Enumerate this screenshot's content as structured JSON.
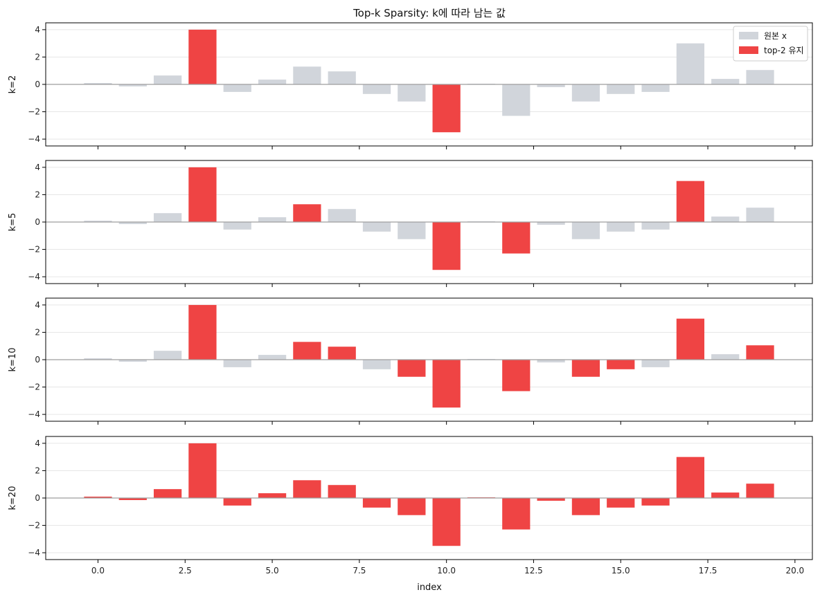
{
  "chart_data": {
    "type": "bar",
    "title": "Top-k Sparsity: k에 따라 남는 값",
    "xlabel": "index",
    "x": [
      0,
      1,
      2,
      3,
      4,
      5,
      6,
      7,
      8,
      9,
      10,
      11,
      12,
      13,
      14,
      15,
      16,
      17,
      18,
      19
    ],
    "values": [
      0.1,
      -0.15,
      0.65,
      4.0,
      -0.55,
      0.35,
      1.3,
      0.95,
      -0.7,
      -1.25,
      -3.5,
      0.05,
      -2.3,
      -0.2,
      -1.25,
      -0.7,
      -0.55,
      3.0,
      0.4,
      1.05
    ],
    "xlim": [
      -1.5,
      20.5
    ],
    "ylim": [
      -4.5,
      4.5
    ],
    "xticks": [
      "0.0",
      "2.5",
      "5.0",
      "7.5",
      "10.0",
      "12.5",
      "15.0",
      "17.5",
      "20.0"
    ],
    "xtick_values": [
      0,
      2.5,
      5,
      7.5,
      10,
      12.5,
      15,
      17.5,
      20
    ],
    "yticks": [
      "4",
      "2",
      "0",
      "−2",
      "−4"
    ],
    "ytick_values": [
      4,
      2,
      0,
      -2,
      -4
    ],
    "grid": "y",
    "colors": {
      "kept": "#ef4444",
      "original": "#d1d5db",
      "zero_line": "#9e9e9e",
      "grid": "#e6e6e6"
    },
    "legend": {
      "placement": "top-right",
      "entries": [
        "원본 x",
        "top-2 유지"
      ]
    },
    "panels": [
      {
        "ylabel": "k=2",
        "k": 2,
        "kept": [
          3,
          10
        ]
      },
      {
        "ylabel": "k=5",
        "k": 5,
        "kept": [
          3,
          6,
          10,
          12,
          17
        ]
      },
      {
        "ylabel": "k=10",
        "k": 10,
        "kept": [
          3,
          6,
          7,
          9,
          10,
          12,
          14,
          15,
          17,
          19
        ]
      },
      {
        "ylabel": "k=20",
        "k": 20,
        "kept": [
          0,
          1,
          2,
          3,
          4,
          5,
          6,
          7,
          8,
          9,
          10,
          11,
          12,
          13,
          14,
          15,
          16,
          17,
          18,
          19
        ]
      }
    ]
  }
}
